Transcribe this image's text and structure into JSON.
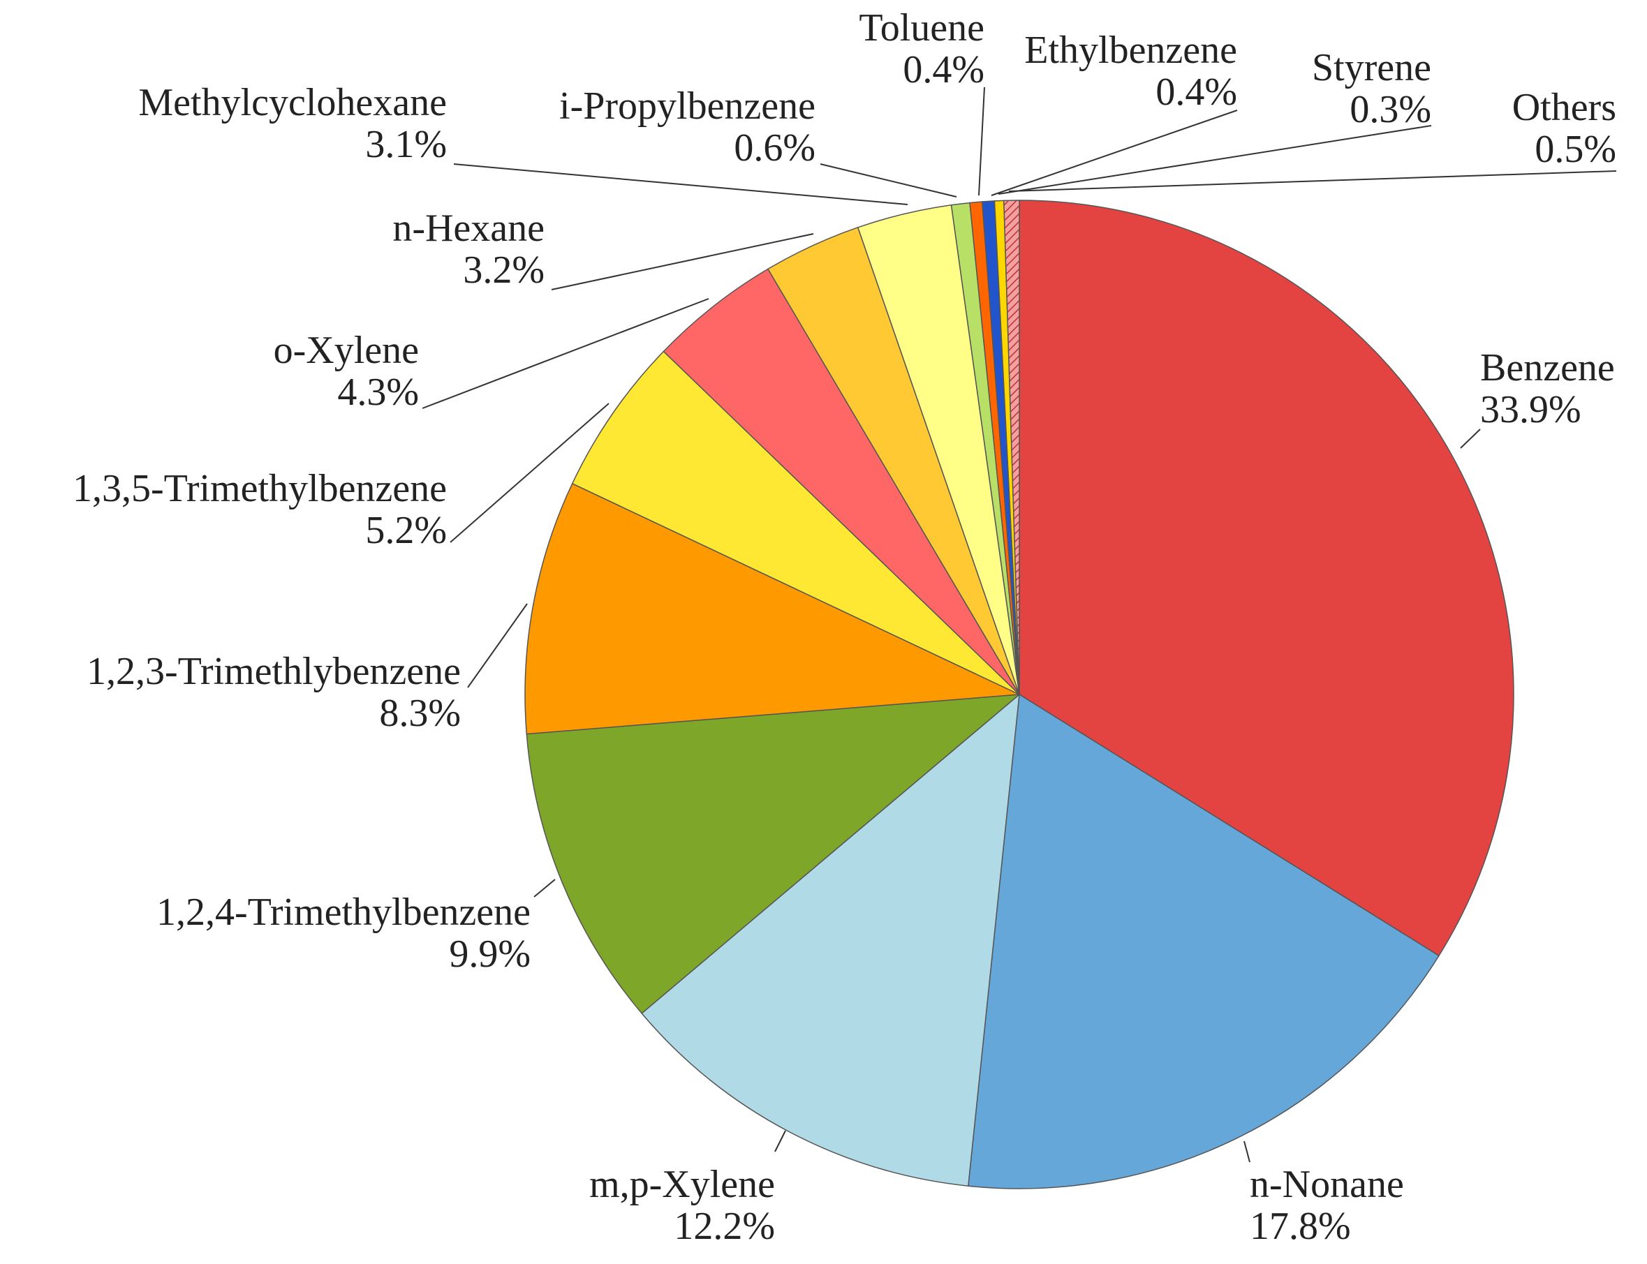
{
  "chart_data": {
    "type": "pie",
    "title": "",
    "start": "12 o'clock",
    "direction": "clockwise",
    "slices": [
      {
        "label": "Benzene",
        "value": 33.9,
        "pct": "33.9%",
        "color": "#E34341"
      },
      {
        "label": "n-Nonane",
        "value": 17.8,
        "pct": "17.8%",
        "color": "#66A7DA"
      },
      {
        "label": "m,p-Xylene",
        "value": 12.2,
        "pct": "12.2%",
        "color": "#B1DAE7"
      },
      {
        "label": "1,2,4-Trimethylbenzene",
        "value": 9.9,
        "pct": "9.9%",
        "color": "#7EA628"
      },
      {
        "label": "1,2,3-Trimethlybenzene",
        "value": 8.3,
        "pct": "8.3%",
        "color": "#FF9900"
      },
      {
        "label": "1,3,5-Trimethylbenzene",
        "value": 5.2,
        "pct": "5.2%",
        "color": "#FFE833"
      },
      {
        "label": "o-Xylene",
        "value": 4.3,
        "pct": "4.3%",
        "color": "#FF6666"
      },
      {
        "label": "n-Hexane",
        "value": 3.2,
        "pct": "3.2%",
        "color": "#FFC933"
      },
      {
        "label": "Methylcyclohexane",
        "value": 3.1,
        "pct": "3.1%",
        "color": "#FFFF88"
      },
      {
        "label": "i-Propylbenzene",
        "value": 0.6,
        "pct": "0.6%",
        "color": "#B8E066"
      },
      {
        "label": "Toluene",
        "value": 0.4,
        "pct": "0.4%",
        "color": "#FF6600"
      },
      {
        "label": "Ethylbenzene",
        "value": 0.4,
        "pct": "0.4%",
        "color": "#2255CC"
      },
      {
        "label": "Styrene",
        "value": 0.3,
        "pct": "0.3%",
        "color": "#FFD700"
      },
      {
        "label": "Others",
        "value": 0.5,
        "pct": "0.5%",
        "color": "#E34341",
        "pattern": "hatched"
      }
    ]
  }
}
